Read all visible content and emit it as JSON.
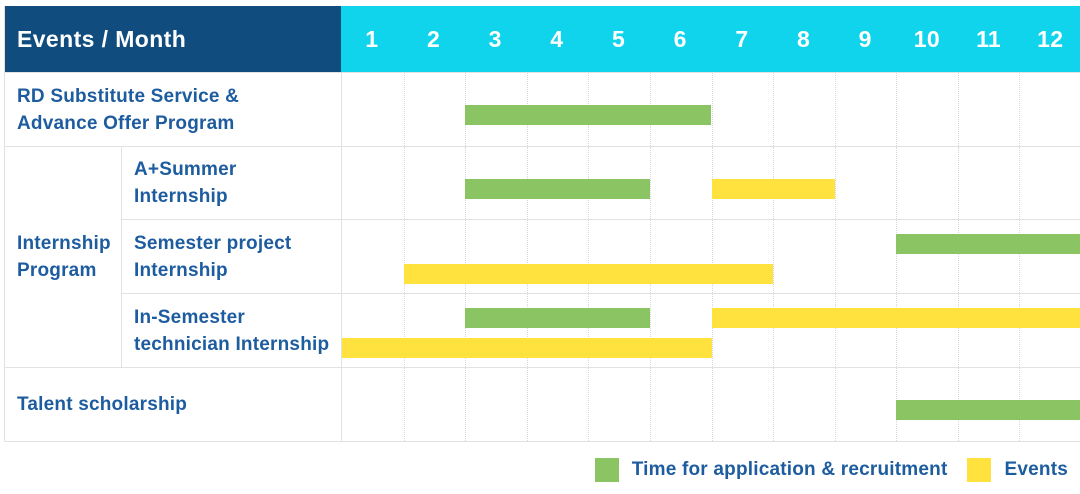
{
  "header": {
    "title": "Events / Month"
  },
  "colors": {
    "navy": "#104C7E",
    "cyan": "#0FD4EC",
    "green": "#8BC463",
    "yellow": "#FFE23D",
    "label_text": "#1D5C9F",
    "grid": "#E2E2E2"
  },
  "legend": {
    "items": [
      {
        "color_key": "green",
        "label": "Time for application & recruitment"
      },
      {
        "color_key": "yellow",
        "label": "Events"
      }
    ]
  },
  "chart_data": {
    "type": "gantt",
    "title": "Events / Month",
    "x_unit": "month",
    "x_tick_labels": [
      "1",
      "2",
      "3",
      "4",
      "5",
      "6",
      "7",
      "8",
      "9",
      "10",
      "11",
      "12"
    ],
    "x_range": [
      1,
      12
    ],
    "grid": true,
    "legend_position": "bottom-right",
    "bar_meanings": {
      "green": "Time for application & recruitment",
      "yellow": "Events"
    },
    "sections": [
      {
        "kind": "row",
        "label_lines": [
          "RD Substitute Service &",
          "Advance Offer Program"
        ],
        "bars": [
          {
            "color_key": "green",
            "kind": "Time for application & recruitment",
            "start_month": 3,
            "end_month": 6,
            "track": 0
          }
        ]
      },
      {
        "kind": "group",
        "label_lines": [
          "Internship",
          "Program"
        ],
        "rows": [
          {
            "label_lines": [
              "A+Summer",
              "Internship"
            ],
            "bars": [
              {
                "color_key": "green",
                "kind": "Time for application & recruitment",
                "start_month": 3,
                "end_month": 5,
                "track": 0
              },
              {
                "color_key": "yellow",
                "kind": "Events",
                "start_month": 7,
                "end_month": 8,
                "track": 0
              }
            ]
          },
          {
            "label_lines": [
              "Semester project",
              "Internship"
            ],
            "bars": [
              {
                "color_key": "green",
                "kind": "Time for application & recruitment",
                "start_month": 10,
                "end_month": 12,
                "track": 0
              },
              {
                "color_key": "yellow",
                "kind": "Events",
                "start_month": 2,
                "end_month": 7,
                "track": 1
              }
            ]
          },
          {
            "label_lines": [
              "In-Semester",
              "technician Internship"
            ],
            "bars": [
              {
                "color_key": "green",
                "kind": "Time for application & recruitment",
                "start_month": 3,
                "end_month": 5,
                "track": 0
              },
              {
                "color_key": "yellow",
                "kind": "Events",
                "start_month": 7,
                "end_month": 12,
                "track": 0
              },
              {
                "color_key": "yellow",
                "kind": "Events",
                "start_month": 1,
                "end_month": 6,
                "track": 1
              }
            ]
          }
        ]
      },
      {
        "kind": "row",
        "label_lines": [
          "Talent scholarship"
        ],
        "bars": [
          {
            "color_key": "green",
            "kind": "Time for application & recruitment",
            "start_month": 10,
            "end_month": 12,
            "track": 0
          }
        ]
      }
    ]
  }
}
